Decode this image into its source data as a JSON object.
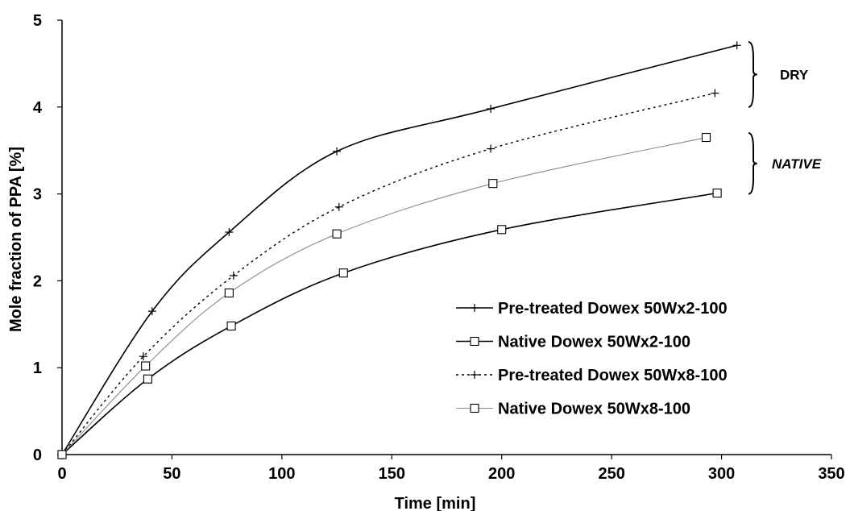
{
  "chart_data": {
    "type": "line",
    "title": "",
    "xlabel": "Time [min]",
    "ylabel": "Mole fraction of PPA [%]",
    "xlim": [
      0,
      350
    ],
    "ylim": [
      0,
      5
    ],
    "xticks": [
      0,
      50,
      100,
      150,
      200,
      250,
      300,
      350
    ],
    "yticks": [
      0,
      1,
      2,
      3,
      4,
      5
    ],
    "grid": false,
    "legend_position": "bottom-right",
    "series": [
      {
        "name": "Pre-treated Dowex 50Wx2-100",
        "marker": "plus",
        "line_style": "solid",
        "color": "#000000",
        "x": [
          0,
          41,
          76,
          125,
          195,
          307
        ],
        "y": [
          0,
          1.65,
          2.56,
          3.49,
          3.98,
          4.71
        ]
      },
      {
        "name": "Native Dowex 50Wx2-100",
        "marker": "square",
        "line_style": "solid",
        "color": "#000000",
        "x": [
          0,
          39,
          77,
          128,
          200,
          298
        ],
        "y": [
          0,
          0.87,
          1.48,
          2.09,
          2.59,
          3.01
        ]
      },
      {
        "name": "Pre-treated Dowex 50Wx8-100",
        "marker": "plus",
        "line_style": "dotted",
        "color": "#000000",
        "x": [
          0,
          37,
          78,
          126,
          195,
          297
        ],
        "y": [
          0,
          1.13,
          2.06,
          2.85,
          3.52,
          4.16
        ]
      },
      {
        "name": "Native Dowex 50Wx8-100",
        "marker": "square",
        "line_style": "solid-thin",
        "color": "#8c8c8c",
        "x": [
          0,
          38,
          76,
          125,
          196,
          293
        ],
        "y": [
          0,
          1.02,
          1.86,
          2.54,
          3.12,
          3.65
        ]
      }
    ],
    "annotations": [
      {
        "text": "DRY",
        "style": "bold",
        "brace_y": [
          4.0,
          4.75
        ]
      },
      {
        "text": "NATIVE",
        "style": "bold-italic",
        "brace_y": [
          3.0,
          3.7
        ]
      }
    ]
  }
}
